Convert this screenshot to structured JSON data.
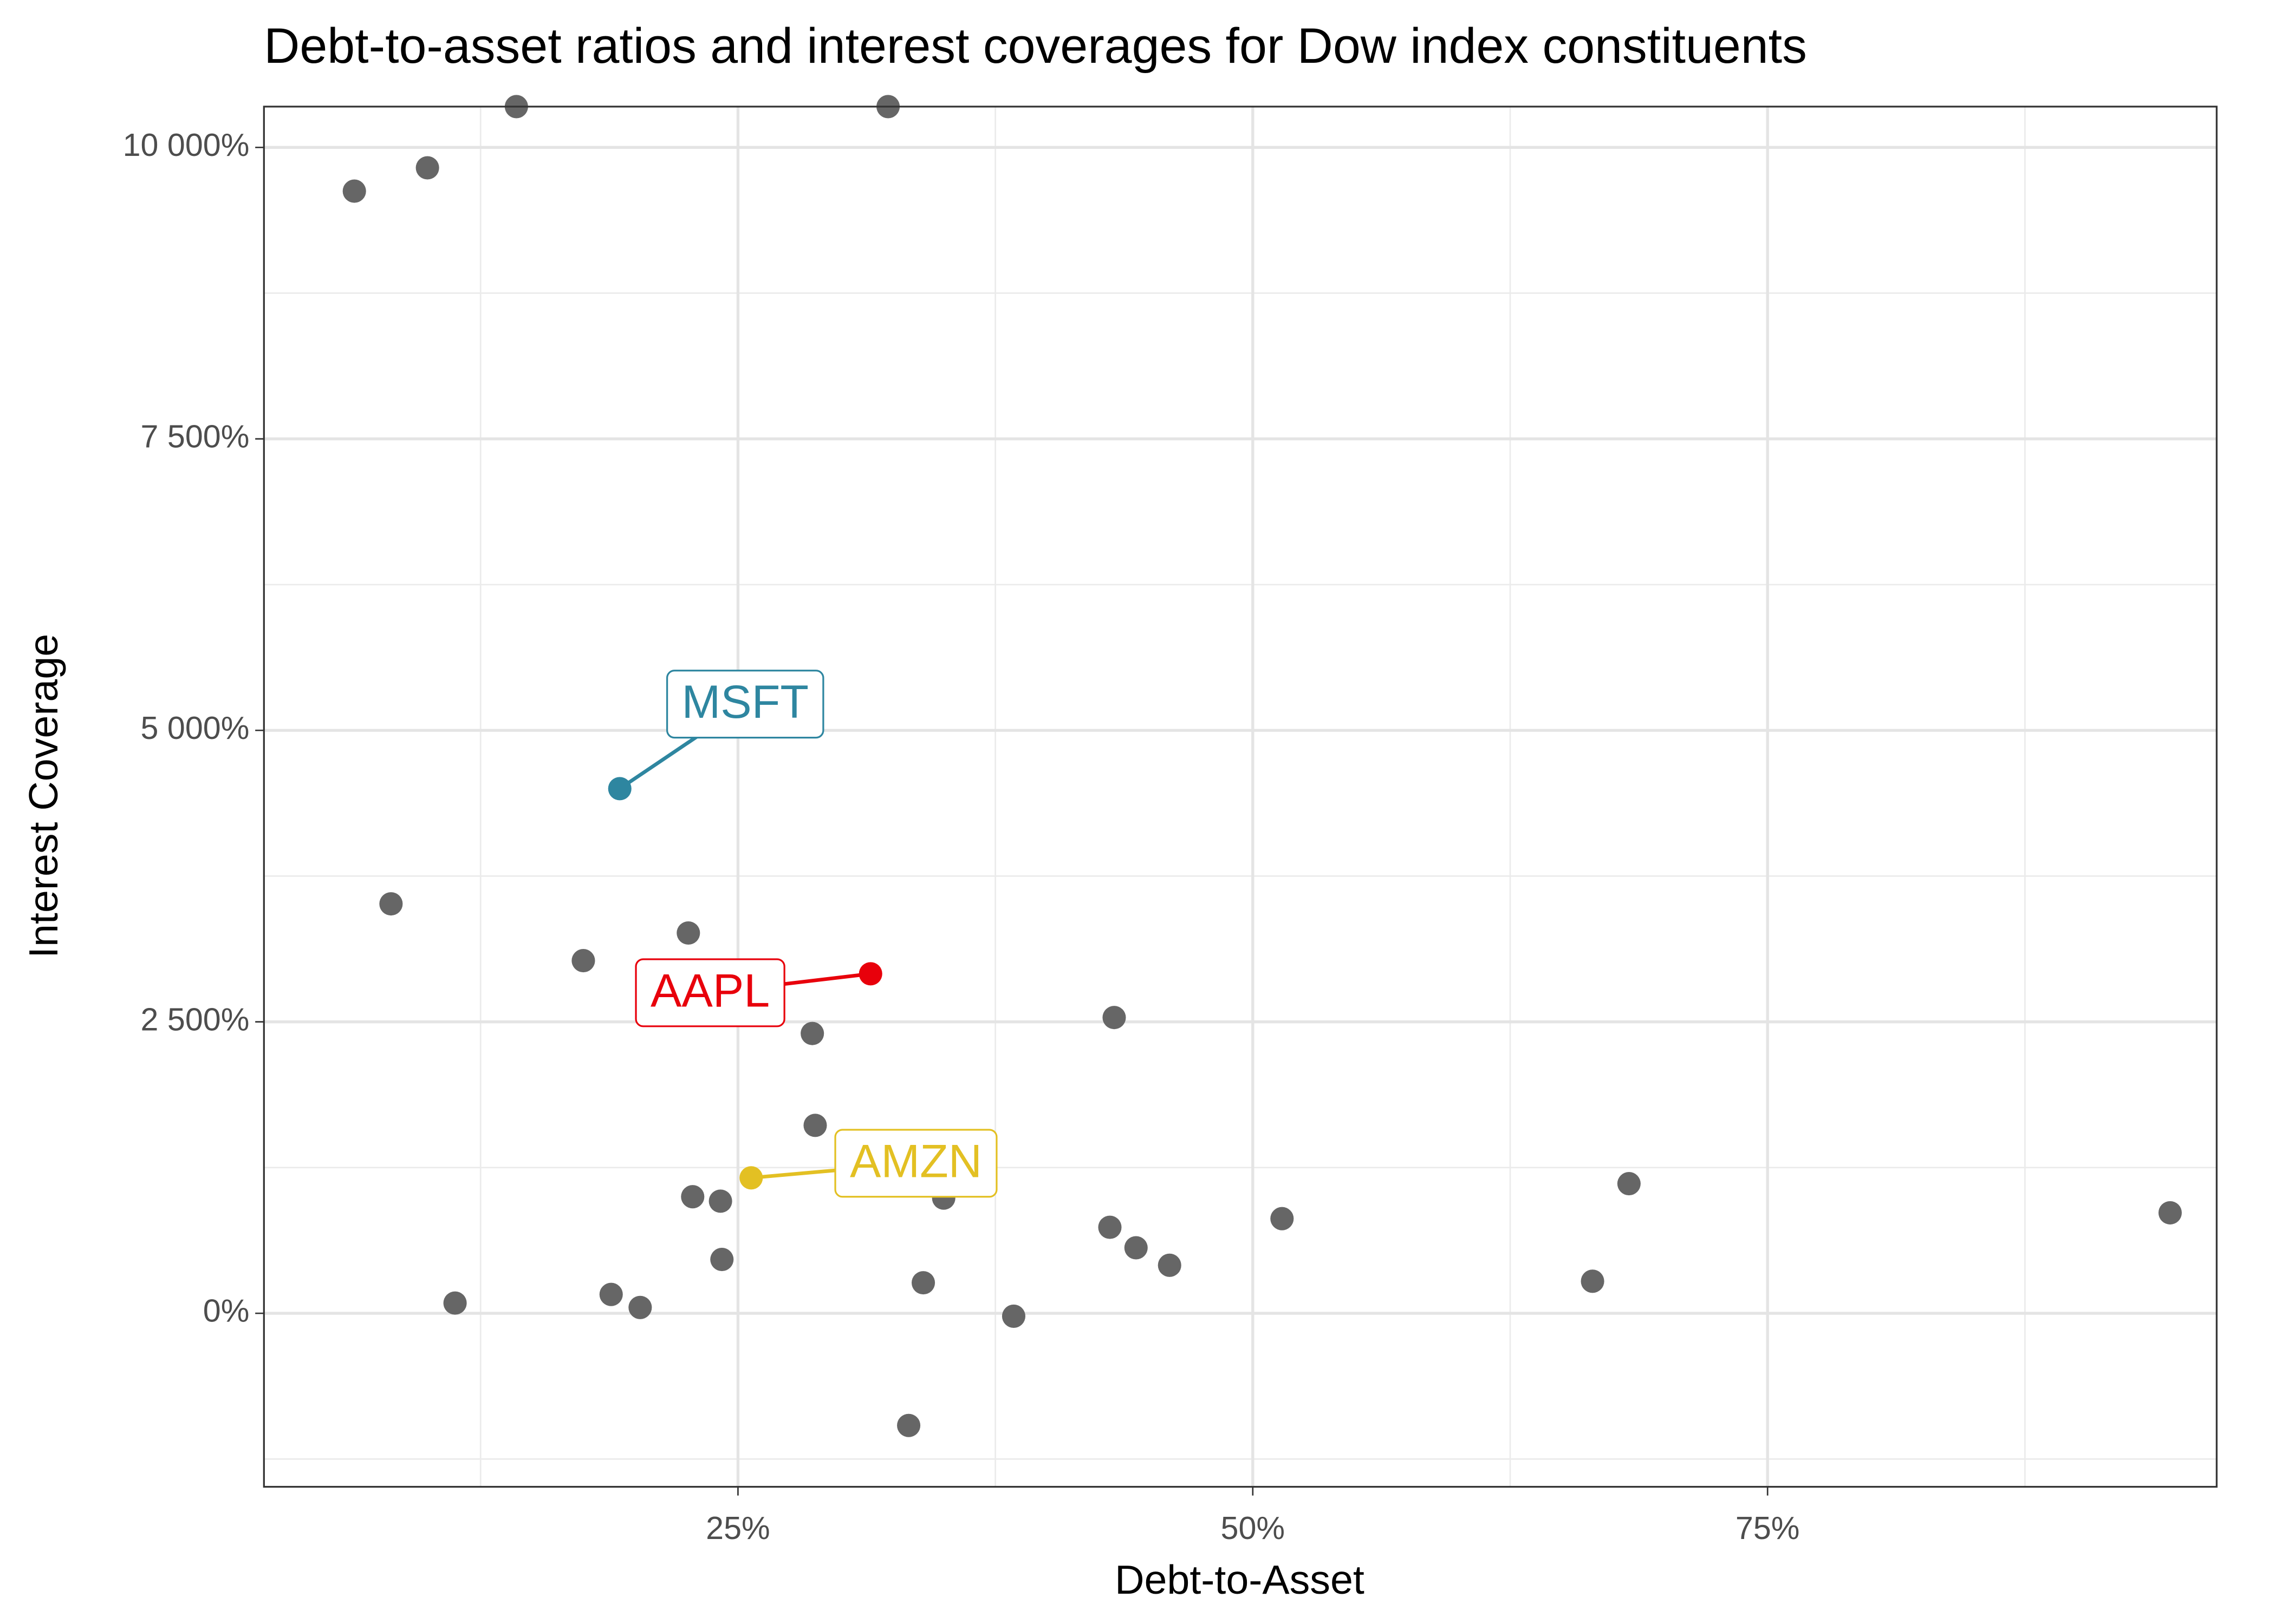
{
  "chart_data": {
    "type": "scatter",
    "title": "Debt-to-asset ratios and interest coverages for Dow index constituents",
    "x_label": "Debt-to-Asset",
    "y_label": "Interest Coverage",
    "xlim": [
      1.98,
      96.81
    ],
    "ylim": [
      -1488,
      10350
    ],
    "xticks": [
      {
        "value": 25,
        "label": "25%"
      },
      {
        "value": 50,
        "label": "50%"
      },
      {
        "value": 75,
        "label": "75%"
      }
    ],
    "yticks": [
      {
        "value": 0,
        "label": "0%"
      },
      {
        "value": 2500,
        "label": "2 500%"
      },
      {
        "value": 5000,
        "label": "5 000%"
      },
      {
        "value": 7500,
        "label": "7 500%"
      },
      {
        "value": 10000,
        "label": "10 000%"
      }
    ],
    "x_minor_ticks": [
      12.5,
      37.5,
      62.5,
      87.5
    ],
    "y_minor_ticks": [
      -1250,
      1250,
      3750,
      6250,
      8750
    ],
    "grid": true,
    "series": [
      {
        "color": "#666666",
        "x": [
          14.24,
          32.29,
          6.37,
          9.92,
          8.15,
          22.59,
          17.49,
          28.61,
          43.27,
          28.75,
          22.8,
          24.15,
          34.99,
          68.27,
          94.55,
          51.42,
          43.06,
          44.33,
          45.96,
          24.22,
          66.5,
          34.0,
          18.84,
          11.26,
          20.25,
          38.39,
          33.29
        ],
        "values": [
          10350,
          10350,
          9625,
          9825,
          3512,
          3262,
          3025,
          2400,
          2537,
          1612,
          1000,
          962,
          988,
          1112,
          862,
          812,
          738,
          562,
          412,
          462,
          275,
          262,
          162,
          88,
          50,
          -25,
          -962
        ]
      },
      {
        "name": "MSFT",
        "color": "#2e86a0",
        "x": [
          19.26
        ],
        "values": [
          4500
        ]
      },
      {
        "name": "AAPL",
        "color": "#e8000b",
        "x": [
          31.44
        ],
        "values": [
          2912
        ]
      },
      {
        "name": "AMZN",
        "color": "#e3c023",
        "x": [
          25.64
        ],
        "values": [
          1162
        ]
      }
    ]
  }
}
